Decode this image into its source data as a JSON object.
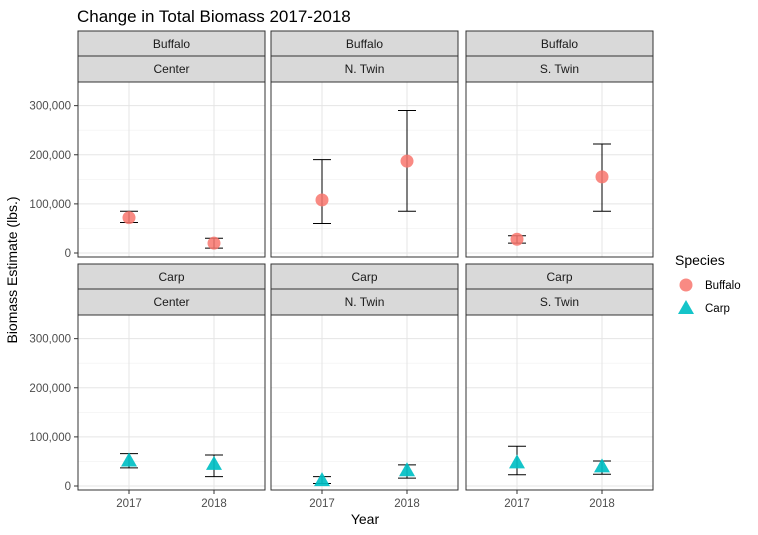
{
  "chart_data": {
    "type": "scatter",
    "title": "Change in Total Biomass 2017-2018",
    "xlabel": "Year",
    "ylabel": "Biomass Estimate (lbs.)",
    "x_categories": [
      "2017",
      "2018"
    ],
    "ylim": [
      0,
      340000
    ],
    "y_ticks": [
      0,
      100000,
      200000,
      300000
    ],
    "y_tick_labels": [
      "0",
      "100,000",
      "200,000",
      "300,000"
    ],
    "grid": true,
    "legend": {
      "title": "Species",
      "placement": "right",
      "entries": [
        {
          "name": "Buffalo",
          "color": "#F8766D",
          "shape": "circle"
        },
        {
          "name": "Carp",
          "color": "#00BFC4",
          "shape": "triangle"
        }
      ]
    },
    "panels": [
      {
        "species": "Buffalo",
        "site": "Center",
        "points": [
          {
            "x": "2017",
            "y": 72000,
            "lower": 62000,
            "upper": 85000
          },
          {
            "x": "2018",
            "y": 20000,
            "lower": 10000,
            "upper": 30000
          }
        ]
      },
      {
        "species": "Buffalo",
        "site": "N. Twin",
        "points": [
          {
            "x": "2017",
            "y": 108000,
            "lower": 60000,
            "upper": 190000
          },
          {
            "x": "2018",
            "y": 187000,
            "lower": 85000,
            "upper": 290000
          }
        ]
      },
      {
        "species": "Buffalo",
        "site": "S. Twin",
        "points": [
          {
            "x": "2017",
            "y": 28000,
            "lower": 20000,
            "upper": 35000
          },
          {
            "x": "2018",
            "y": 155000,
            "lower": 85000,
            "upper": 222000
          }
        ]
      },
      {
        "species": "Carp",
        "site": "Center",
        "points": [
          {
            "x": "2017",
            "y": 52000,
            "lower": 37000,
            "upper": 66000
          },
          {
            "x": "2018",
            "y": 45000,
            "lower": 19000,
            "upper": 63000
          }
        ]
      },
      {
        "species": "Carp",
        "site": "N. Twin",
        "points": [
          {
            "x": "2017",
            "y": 12000,
            "lower": 5000,
            "upper": 19000
          },
          {
            "x": "2018",
            "y": 32000,
            "lower": 16000,
            "upper": 43000
          }
        ]
      },
      {
        "species": "Carp",
        "site": "S. Twin",
        "points": [
          {
            "x": "2017",
            "y": 48000,
            "lower": 23000,
            "upper": 81000
          },
          {
            "x": "2018",
            "y": 40000,
            "lower": 24000,
            "upper": 51000
          }
        ]
      }
    ]
  }
}
